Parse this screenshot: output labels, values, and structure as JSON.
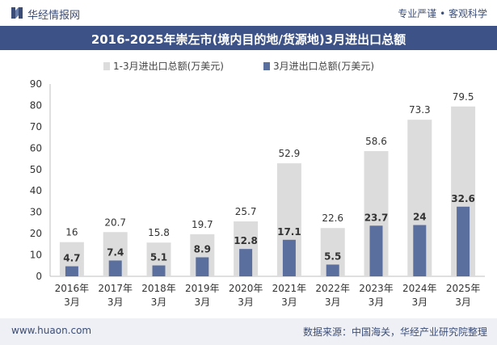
{
  "header": {
    "brand": "华经情报网",
    "slogan": "专业严谨 • 客观科学",
    "title": "2016-2025年崇左市(境内目的地/货源地)3月进出口总额"
  },
  "footer": {
    "url": "www.huaon.com",
    "source": "数据来源：中国海关，华经产业研究院整理"
  },
  "colors": {
    "series1": "#dcdcdc",
    "series2": "#5b6f9e",
    "title_bg": "#3d5286"
  },
  "chart_data": {
    "type": "bar",
    "categories": [
      "2016年\n3月",
      "2017年\n3月",
      "2018年\n3月",
      "2019年\n3月",
      "2020年\n3月",
      "2021年\n3月",
      "2022年\n3月",
      "2023年\n3月",
      "2024年\n3月",
      "2025年\n3月"
    ],
    "series": [
      {
        "name": "1-3月进出口总额(万美元)",
        "values": [
          16,
          20.7,
          15.8,
          19.7,
          25.7,
          52.9,
          22.6,
          58.6,
          73.3,
          79.5
        ],
        "color": "#dcdcdc"
      },
      {
        "name": "3月进出口总额(万美元)",
        "values": [
          4.7,
          7.4,
          5.1,
          8.9,
          12.8,
          17.1,
          5.5,
          23.7,
          24,
          32.6
        ],
        "color": "#5b6f9e"
      }
    ],
    "ylim": [
      0,
      90
    ],
    "yticks": [
      0,
      10,
      20,
      30,
      40,
      50,
      60,
      70,
      80,
      90
    ],
    "legend_position": "top",
    "grid": false
  }
}
